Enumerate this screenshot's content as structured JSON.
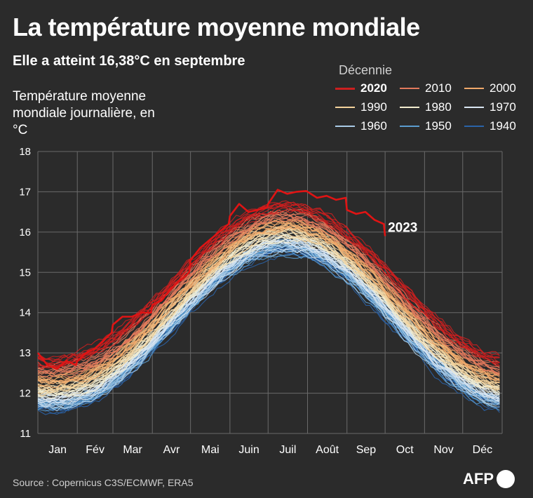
{
  "header": {
    "title": "La température moyenne mondiale",
    "subtitle": "Elle a atteint 16,38°C en septembre"
  },
  "footer": {
    "source": "Source : Copernicus C3S/ECMWF, ERA5",
    "logo_text": "AFP"
  },
  "chart_data": {
    "type": "line",
    "ylabel": "Température moyenne mondiale journalière, en °C",
    "ylim": [
      11,
      18
    ],
    "yticks": [
      "11",
      "12",
      "13",
      "14",
      "15",
      "16",
      "17",
      "18"
    ],
    "months": [
      "Jan",
      "Fév",
      "Mar",
      "Avr",
      "Mai",
      "Juin",
      "Juil",
      "Août",
      "Sep",
      "Oct",
      "Nov",
      "Déc"
    ],
    "grid": true,
    "legend_title": "Décennie",
    "legend_position": "top-right",
    "decades": [
      {
        "name": "2020",
        "color": "#cc1f1f"
      },
      {
        "name": "2010",
        "color": "#e2795c"
      },
      {
        "name": "2000",
        "color": "#f0a86a"
      },
      {
        "name": "1990",
        "color": "#f3d29b"
      },
      {
        "name": "1980",
        "color": "#f2eccf"
      },
      {
        "name": "1970",
        "color": "#d9e6f2"
      },
      {
        "name": "1960",
        "color": "#a9cbe6"
      },
      {
        "name": "1950",
        "color": "#5b9ccf"
      },
      {
        "name": "1940",
        "color": "#2a63a8"
      }
    ],
    "highlight_series": {
      "name": "2023",
      "label": "2023",
      "color": "#e01414",
      "monthly_values": [
        {
          "month": "Jan",
          "values": [
            13.0,
            12.7,
            12.6,
            12.8,
            12.7
          ]
        },
        {
          "month": "Fév",
          "values": [
            12.8,
            13.0,
            13.1,
            13.3,
            13.5
          ]
        },
        {
          "month": "Mar",
          "values": [
            13.7,
            13.9,
            13.9,
            14.0,
            14.0
          ]
        },
        {
          "month": "Avr",
          "values": [
            14.2,
            14.3,
            14.6,
            14.8,
            15.0
          ]
        },
        {
          "month": "Mai",
          "values": [
            15.3,
            15.6,
            15.8,
            16.0,
            16.2
          ]
        },
        {
          "month": "Juin",
          "values": [
            16.4,
            16.7,
            16.5,
            16.55,
            16.6
          ]
        },
        {
          "month": "Juil",
          "values": [
            16.7,
            17.05,
            16.95,
            17.0,
            17.02
          ]
        },
        {
          "month": "Août",
          "values": [
            17.0,
            16.85,
            16.9,
            16.8,
            16.85
          ]
        },
        {
          "month": "Sep",
          "values": [
            16.55,
            16.45,
            16.5,
            16.3,
            16.2
          ]
        },
        {
          "month": "Oct",
          "values": [
            15.9
          ]
        }
      ]
    },
    "baseline_curves": {
      "1940": {
        "min": 11.55,
        "max": 15.45
      },
      "1950": {
        "min": 11.6,
        "max": 15.5
      },
      "1960": {
        "min": 11.65,
        "max": 15.55
      },
      "1970": {
        "min": 11.75,
        "max": 15.65
      },
      "1980": {
        "min": 11.9,
        "max": 15.8
      },
      "1990": {
        "min": 12.05,
        "max": 15.95
      },
      "2000": {
        "min": 12.25,
        "max": 16.1
      },
      "2010": {
        "min": 12.45,
        "max": 16.3
      },
      "2020": {
        "min": 12.7,
        "max": 16.55
      }
    }
  }
}
